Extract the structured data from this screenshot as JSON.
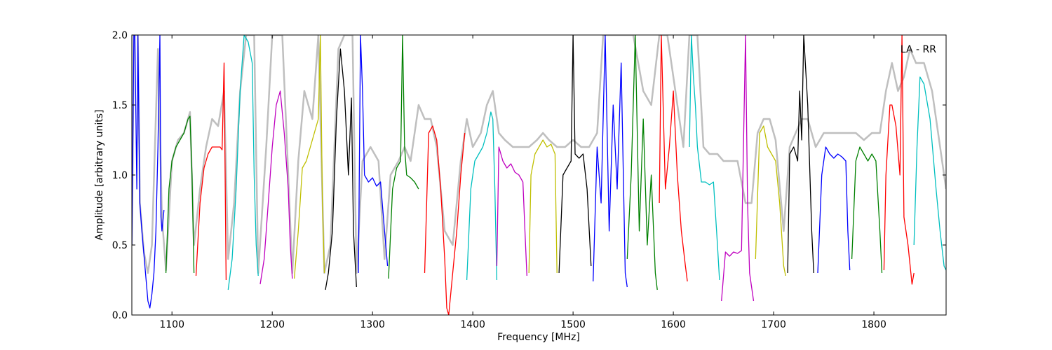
{
  "chart_data": {
    "type": "line",
    "xlabel": "Frequency [MHz]",
    "ylabel": "Amplitude [arbitrary units]",
    "annotation": "LA - RR",
    "xlim": [
      1060,
      1872
    ],
    "ylim": [
      0.0,
      2.0
    ],
    "x_ticks": [
      1100,
      1200,
      1300,
      1400,
      1500,
      1600,
      1700,
      1800
    ],
    "x_tick_labels": [
      "1100",
      "1200",
      "1300",
      "1400",
      "1500",
      "1600",
      "1700",
      "1800"
    ],
    "y_ticks": [
      0.0,
      0.5,
      1.0,
      1.5,
      2.0
    ],
    "y_tick_labels": [
      "0.0",
      "0.5",
      "1.0",
      "1.5",
      "2.0"
    ],
    "grid": false,
    "legend": "none",
    "colors": {
      "blue": "#0000ff",
      "green": "#008000",
      "red": "#ff0000",
      "cyan": "#00bfbf",
      "magenta": "#bf00bf",
      "yellow": "#bfbf00",
      "black": "#000000",
      "reference": "#bfbfbf"
    },
    "reference_band": [
      [
        1060,
        0.5
      ],
      [
        1062,
        2.0
      ],
      [
        1066,
        2.0
      ],
      [
        1068,
        0.8
      ],
      [
        1072,
        0.45
      ],
      [
        1076,
        0.3
      ],
      [
        1080,
        0.5
      ],
      [
        1086,
        1.9
      ],
      [
        1090,
        0.7
      ],
      [
        1094,
        0.32
      ],
      [
        1100,
        1.1
      ],
      [
        1106,
        1.25
      ],
      [
        1112,
        1.3
      ],
      [
        1118,
        1.45
      ],
      [
        1122,
        0.5
      ],
      [
        1128,
        0.9
      ],
      [
        1134,
        1.2
      ],
      [
        1140,
        1.4
      ],
      [
        1146,
        1.35
      ],
      [
        1152,
        1.6
      ],
      [
        1156,
        0.4
      ],
      [
        1162,
        0.8
      ],
      [
        1168,
        1.6
      ],
      [
        1174,
        2.0
      ],
      [
        1182,
        2.0
      ],
      [
        1186,
        0.3
      ],
      [
        1194,
        1.2
      ],
      [
        1200,
        2.0
      ],
      [
        1210,
        2.0
      ],
      [
        1216,
        1.0
      ],
      [
        1220,
        0.3
      ],
      [
        1226,
        1.1
      ],
      [
        1232,
        1.6
      ],
      [
        1240,
        1.4
      ],
      [
        1246,
        2.0
      ],
      [
        1252,
        0.3
      ],
      [
        1258,
        0.5
      ],
      [
        1266,
        1.9
      ],
      [
        1272,
        2.0
      ],
      [
        1280,
        2.0
      ],
      [
        1284,
        0.3
      ],
      [
        1290,
        1.1
      ],
      [
        1298,
        1.2
      ],
      [
        1306,
        1.1
      ],
      [
        1312,
        0.4
      ],
      [
        1318,
        1.0
      ],
      [
        1326,
        1.1
      ],
      [
        1332,
        1.2
      ],
      [
        1338,
        1.1
      ],
      [
        1346,
        1.5
      ],
      [
        1352,
        1.4
      ],
      [
        1358,
        1.4
      ],
      [
        1364,
        1.2
      ],
      [
        1372,
        0.6
      ],
      [
        1380,
        0.5
      ],
      [
        1388,
        1.1
      ],
      [
        1394,
        1.4
      ],
      [
        1400,
        1.2
      ],
      [
        1408,
        1.3
      ],
      [
        1414,
        1.5
      ],
      [
        1420,
        1.6
      ],
      [
        1426,
        1.3
      ],
      [
        1432,
        1.25
      ],
      [
        1440,
        1.2
      ],
      [
        1448,
        1.2
      ],
      [
        1456,
        1.2
      ],
      [
        1464,
        1.25
      ],
      [
        1470,
        1.3
      ],
      [
        1476,
        1.25
      ],
      [
        1484,
        1.2
      ],
      [
        1492,
        1.2
      ],
      [
        1500,
        1.25
      ],
      [
        1508,
        1.2
      ],
      [
        1516,
        1.2
      ],
      [
        1524,
        1.3
      ],
      [
        1530,
        2.0
      ],
      [
        1540,
        2.0
      ],
      [
        1550,
        2.0
      ],
      [
        1560,
        2.0
      ],
      [
        1570,
        1.6
      ],
      [
        1578,
        1.5
      ],
      [
        1586,
        2.0
      ],
      [
        1594,
        2.0
      ],
      [
        1602,
        1.6
      ],
      [
        1610,
        1.2
      ],
      [
        1616,
        2.0
      ],
      [
        1624,
        2.0
      ],
      [
        1630,
        1.2
      ],
      [
        1636,
        1.15
      ],
      [
        1644,
        1.15
      ],
      [
        1650,
        1.1
      ],
      [
        1656,
        1.1
      ],
      [
        1664,
        1.1
      ],
      [
        1672,
        0.8
      ],
      [
        1678,
        0.8
      ],
      [
        1684,
        1.3
      ],
      [
        1690,
        1.4
      ],
      [
        1696,
        1.4
      ],
      [
        1702,
        1.25
      ],
      [
        1710,
        0.6
      ],
      [
        1716,
        1.2
      ],
      [
        1722,
        1.3
      ],
      [
        1728,
        1.4
      ],
      [
        1734,
        1.4
      ],
      [
        1742,
        1.2
      ],
      [
        1750,
        1.3
      ],
      [
        1758,
        1.3
      ],
      [
        1766,
        1.3
      ],
      [
        1774,
        1.3
      ],
      [
        1782,
        1.3
      ],
      [
        1790,
        1.25
      ],
      [
        1798,
        1.3
      ],
      [
        1806,
        1.3
      ],
      [
        1812,
        1.6
      ],
      [
        1818,
        1.8
      ],
      [
        1824,
        1.6
      ],
      [
        1830,
        1.7
      ],
      [
        1836,
        1.9
      ],
      [
        1842,
        1.8
      ],
      [
        1850,
        1.8
      ],
      [
        1858,
        1.6
      ],
      [
        1864,
        1.3
      ],
      [
        1872,
        0.9
      ]
    ],
    "series": [
      {
        "color": "blue",
        "x": [
          1060,
          1062,
          1063,
          1065,
          1066,
          1068,
          1070,
          1073,
          1076,
          1078,
          1080,
          1082,
          1084,
          1086,
          1088,
          1089,
          1090,
          1092
        ],
        "y": [
          0.5,
          2.0,
          2.0,
          0.9,
          2.0,
          0.8,
          0.6,
          0.35,
          0.1,
          0.05,
          0.15,
          0.3,
          0.6,
          1.2,
          2.0,
          0.7,
          0.6,
          0.75
        ]
      },
      {
        "color": "green",
        "x": [
          1094,
          1097,
          1100,
          1104,
          1108,
          1112,
          1116,
          1118,
          1120,
          1122
        ],
        "y": [
          0.3,
          0.9,
          1.1,
          1.2,
          1.25,
          1.3,
          1.4,
          1.42,
          1.0,
          0.3
        ]
      },
      {
        "color": "red",
        "x": [
          1124,
          1128,
          1132,
          1136,
          1140,
          1144,
          1148,
          1150,
          1152,
          1154
        ],
        "y": [
          0.28,
          0.8,
          1.05,
          1.15,
          1.2,
          1.2,
          1.2,
          1.18,
          1.8,
          0.25
        ]
      },
      {
        "color": "cyan",
        "x": [
          1156,
          1160,
          1164,
          1168,
          1172,
          1176,
          1180,
          1182,
          1184,
          1186
        ],
        "y": [
          0.18,
          0.4,
          0.9,
          1.6,
          2.0,
          1.95,
          1.8,
          1.0,
          0.5,
          0.28
        ]
      },
      {
        "color": "magenta",
        "x": [
          1188,
          1192,
          1196,
          1200,
          1204,
          1208,
          1212,
          1216,
          1218,
          1220
        ],
        "y": [
          0.22,
          0.4,
          0.8,
          1.2,
          1.5,
          1.6,
          1.3,
          0.9,
          0.5,
          0.26
        ]
      },
      {
        "color": "yellow",
        "x": [
          1222,
          1226,
          1230,
          1234,
          1238,
          1242,
          1246,
          1248,
          1250,
          1252
        ],
        "y": [
          0.26,
          0.6,
          1.05,
          1.1,
          1.2,
          1.3,
          1.4,
          2.0,
          0.8,
          0.3
        ]
      },
      {
        "color": "black",
        "x": [
          1253,
          1256,
          1260,
          1264,
          1268,
          1272,
          1276,
          1279,
          1281,
          1284
        ],
        "y": [
          0.18,
          0.3,
          0.6,
          1.4,
          1.9,
          1.6,
          1.0,
          1.55,
          0.6,
          0.2
        ]
      },
      {
        "color": "blue",
        "x": [
          1286,
          1288,
          1290,
          1292,
          1296,
          1300,
          1304,
          1308,
          1312,
          1315
        ],
        "y": [
          0.3,
          2.0,
          1.6,
          1.0,
          0.95,
          0.98,
          0.92,
          0.95,
          0.6,
          0.35
        ]
      },
      {
        "color": "green",
        "x": [
          1316,
          1320,
          1324,
          1328,
          1330,
          1332,
          1334,
          1338,
          1342,
          1346
        ],
        "y": [
          0.26,
          0.9,
          1.05,
          1.1,
          2.0,
          1.2,
          1.0,
          0.98,
          0.95,
          0.9
        ]
      },
      {
        "color": "red",
        "x": [
          1352,
          1356,
          1360,
          1364,
          1368,
          1372,
          1374,
          1376,
          1380,
          1384,
          1388,
          1392
        ],
        "y": [
          0.3,
          1.3,
          1.35,
          1.25,
          0.9,
          0.4,
          0.05,
          0.0,
          0.3,
          0.6,
          1.0,
          1.3
        ]
      },
      {
        "color": "cyan",
        "x": [
          1394,
          1398,
          1402,
          1406,
          1410,
          1414,
          1418,
          1420,
          1422,
          1424
        ],
        "y": [
          0.25,
          0.9,
          1.1,
          1.15,
          1.2,
          1.3,
          1.45,
          1.4,
          0.9,
          0.25
        ]
      },
      {
        "color": "magenta",
        "x": [
          1424,
          1426,
          1430,
          1434,
          1438,
          1442,
          1446,
          1450,
          1452,
          1454
        ],
        "y": [
          0.35,
          1.2,
          1.1,
          1.05,
          1.08,
          1.02,
          1.0,
          0.95,
          0.6,
          0.28
        ]
      },
      {
        "color": "yellow",
        "x": [
          1456,
          1458,
          1462,
          1466,
          1470,
          1474,
          1478,
          1482,
          1484
        ],
        "y": [
          0.3,
          1.0,
          1.15,
          1.2,
          1.25,
          1.2,
          1.22,
          1.15,
          0.3
        ]
      },
      {
        "color": "black",
        "x": [
          1486,
          1490,
          1494,
          1498,
          1500,
          1502,
          1506,
          1510,
          1514,
          1518
        ],
        "y": [
          0.3,
          1.0,
          1.05,
          1.1,
          2.0,
          1.15,
          1.12,
          1.15,
          0.9,
          0.35
        ]
      },
      {
        "color": "blue",
        "x": [
          1520,
          1524,
          1528,
          1532,
          1536,
          1540,
          1544,
          1548,
          1552,
          1554
        ],
        "y": [
          0.24,
          1.2,
          0.8,
          2.0,
          0.6,
          1.5,
          0.9,
          1.8,
          0.3,
          0.2
        ]
      },
      {
        "color": "green",
        "x": [
          1554,
          1558,
          1562,
          1566,
          1570,
          1574,
          1578,
          1582,
          1584
        ],
        "y": [
          0.4,
          1.0,
          2.0,
          0.6,
          1.4,
          0.5,
          1.0,
          0.3,
          0.18
        ]
      },
      {
        "color": "red",
        "x": [
          1586,
          1588,
          1592,
          1596,
          1600,
          1604,
          1608,
          1612,
          1614
        ],
        "y": [
          0.8,
          2.0,
          0.9,
          1.2,
          1.6,
          1.0,
          0.6,
          0.35,
          0.24
        ]
      },
      {
        "color": "cyan",
        "x": [
          1616,
          1618,
          1620,
          1622,
          1624,
          1628,
          1632,
          1636,
          1640,
          1644,
          1646
        ],
        "y": [
          1.2,
          2.0,
          1.7,
          1.5,
          1.2,
          0.95,
          0.95,
          0.93,
          0.95,
          0.5,
          0.25
        ]
      },
      {
        "color": "magenta",
        "x": [
          1648,
          1652,
          1656,
          1660,
          1664,
          1668,
          1672,
          1674,
          1676,
          1680
        ],
        "y": [
          0.1,
          0.45,
          0.42,
          0.45,
          0.44,
          0.46,
          2.0,
          0.8,
          0.3,
          0.1
        ]
      },
      {
        "color": "yellow",
        "x": [
          1682,
          1686,
          1690,
          1694,
          1698,
          1702,
          1706,
          1710,
          1712
        ],
        "y": [
          0.4,
          1.3,
          1.35,
          1.2,
          1.15,
          1.1,
          0.8,
          0.35,
          0.28
        ]
      },
      {
        "color": "black",
        "x": [
          1714,
          1716,
          1720,
          1724,
          1726,
          1728,
          1730,
          1734,
          1738,
          1740
        ],
        "y": [
          0.3,
          1.15,
          1.2,
          1.1,
          1.6,
          1.25,
          2.0,
          1.5,
          0.6,
          0.3
        ]
      },
      {
        "color": "blue",
        "x": [
          1744,
          1748,
          1752,
          1756,
          1760,
          1764,
          1768,
          1772,
          1774,
          1776
        ],
        "y": [
          0.3,
          1.0,
          1.2,
          1.15,
          1.12,
          1.15,
          1.13,
          1.1,
          0.6,
          0.32
        ]
      },
      {
        "color": "green",
        "x": [
          1778,
          1782,
          1786,
          1790,
          1794,
          1798,
          1802,
          1806,
          1808
        ],
        "y": [
          0.4,
          1.1,
          1.2,
          1.15,
          1.1,
          1.15,
          1.1,
          0.6,
          0.3
        ]
      },
      {
        "color": "red",
        "x": [
          1810,
          1812,
          1816,
          1818,
          1822,
          1826,
          1828,
          1830,
          1834,
          1838,
          1840
        ],
        "y": [
          0.32,
          1.0,
          1.5,
          1.5,
          1.35,
          1.0,
          2.0,
          0.7,
          0.5,
          0.22,
          0.3
        ]
      },
      {
        "color": "cyan",
        "x": [
          1840,
          1843,
          1846,
          1850,
          1856,
          1862,
          1866,
          1870,
          1872
        ],
        "y": [
          0.5,
          1.2,
          1.7,
          1.65,
          1.4,
          0.9,
          0.6,
          0.35,
          0.32
        ]
      }
    ]
  }
}
